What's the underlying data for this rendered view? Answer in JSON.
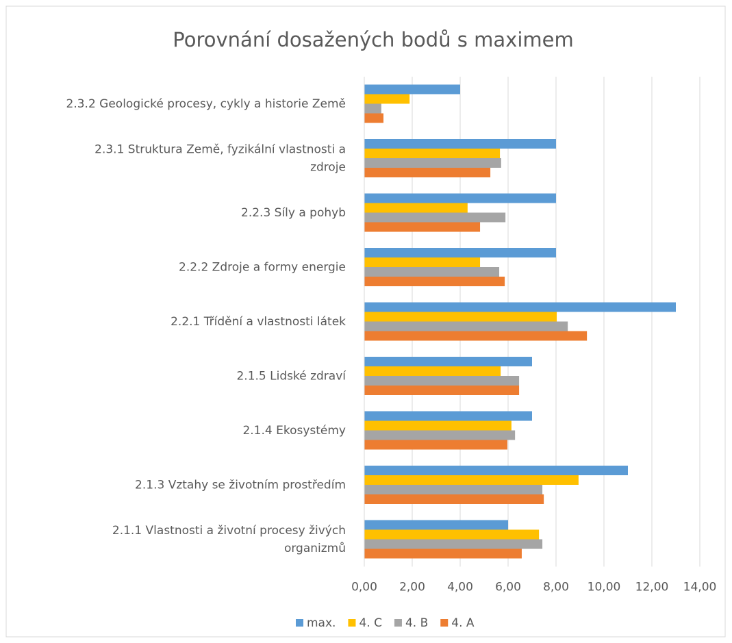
{
  "chart_data": {
    "type": "bar",
    "orientation": "horizontal",
    "title": "Porovnání dosažených bodů s maximem",
    "categories": [
      "2.3.2 Geologické procesy, cykly a historie Země",
      "2.3.1 Struktura Země, fyzikální vlastnosti a zdroje",
      "2.2.3 Síly a pohyb",
      "2.2.2 Zdroje a formy energie",
      "2.2.1 Třídění a vlastnosti látek",
      "2.1.5 Lidské zdraví",
      "2.1.4 Ekosystémy",
      "2.1.3 Vztahy se životním prostředím",
      "2.1.1 Vlastnosti a životní procesy živých organizmů"
    ],
    "series": [
      {
        "name": "max.",
        "color": "#5b9bd5",
        "values": [
          4,
          8,
          8,
          8,
          13,
          7,
          7,
          11,
          6
        ]
      },
      {
        "name": "4. C",
        "color": "#ffc000",
        "values": [
          1.89,
          5.66,
          4.31,
          4.83,
          8.03,
          5.69,
          6.14,
          8.94,
          7.29
        ]
      },
      {
        "name": "4. B",
        "color": "#a5a5a5",
        "values": [
          0.71,
          5.71,
          5.89,
          5.63,
          8.49,
          6.46,
          6.29,
          7.43,
          7.43
        ]
      },
      {
        "name": "4. A",
        "color": "#ed7d31",
        "values": [
          0.8,
          5.26,
          4.83,
          5.86,
          9.29,
          6.46,
          5.97,
          7.49,
          6.57
        ]
      }
    ],
    "xlim": [
      0,
      14
    ],
    "xticks": [
      {
        "value": 0,
        "label": "0,00"
      },
      {
        "value": 2,
        "label": "2,00"
      },
      {
        "value": 4,
        "label": "4,00"
      },
      {
        "value": 6,
        "label": "6,00"
      },
      {
        "value": 8,
        "label": "8,00"
      },
      {
        "value": 10,
        "label": "10,00"
      },
      {
        "value": 12,
        "label": "12,00"
      },
      {
        "value": 14,
        "label": "14,00"
      }
    ],
    "grid": true,
    "legend": "bottom"
  }
}
